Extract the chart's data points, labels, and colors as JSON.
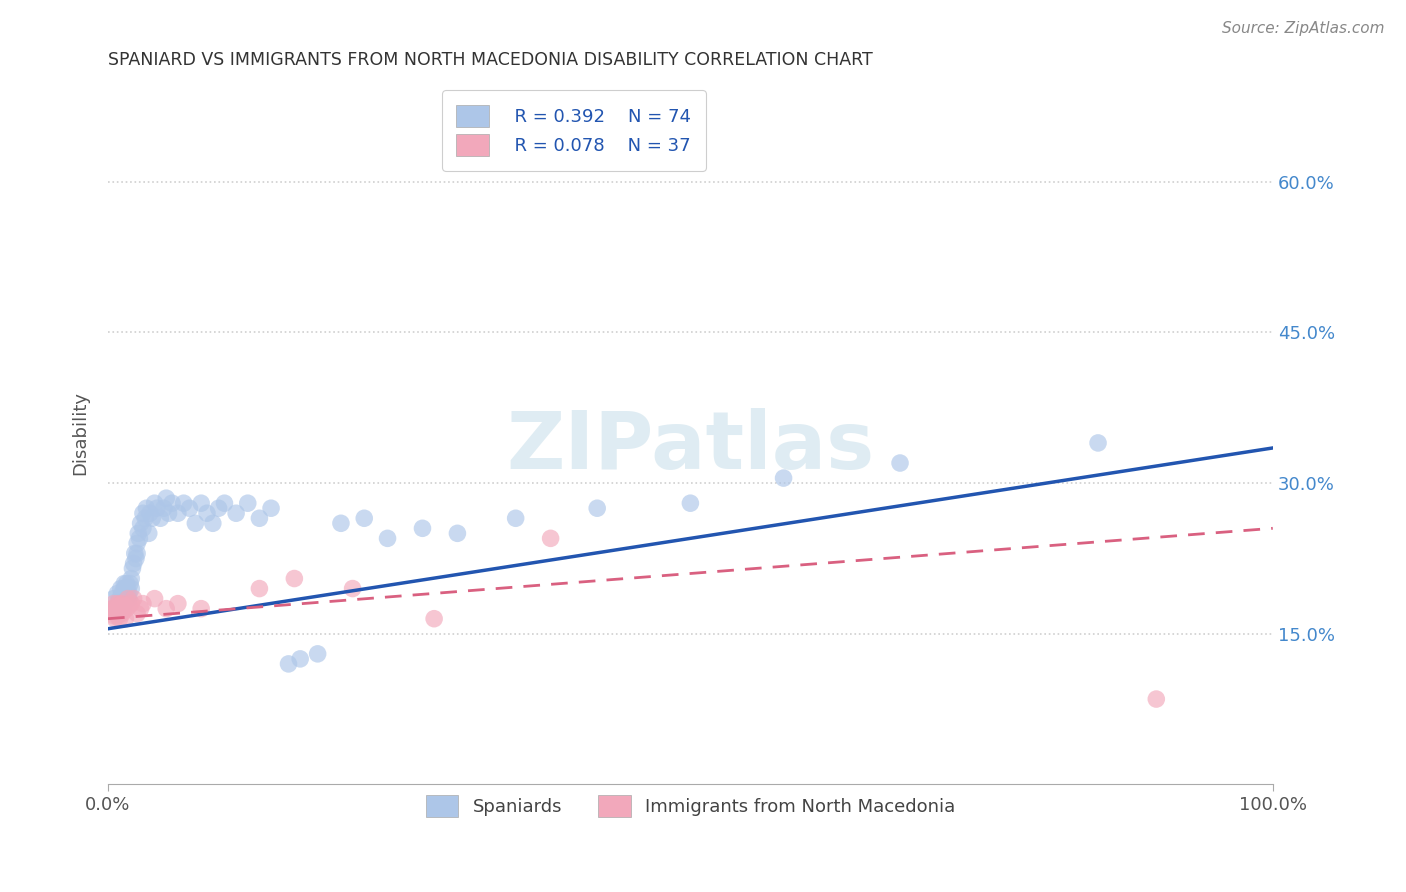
{
  "title": "SPANIARD VS IMMIGRANTS FROM NORTH MACEDONIA DISABILITY CORRELATION CHART",
  "source": "Source: ZipAtlas.com",
  "ylabel": "Disability",
  "watermark": "ZIPatlas",
  "legend_r1": "R = 0.392",
  "legend_n1": "N = 74",
  "legend_r2": "R = 0.078",
  "legend_n2": "N = 37",
  "legend_label1": "Spaniards",
  "legend_label2": "Immigrants from North Macedonia",
  "xlim": [
    0.0,
    1.0
  ],
  "ylim": [
    0.0,
    0.7
  ],
  "yticks": [
    0.15,
    0.3,
    0.45,
    0.6
  ],
  "ytick_labels": [
    "15.0%",
    "30.0%",
    "45.0%",
    "60.0%"
  ],
  "xticks": [
    0.0,
    1.0
  ],
  "xtick_labels": [
    "0.0%",
    "100.0%"
  ],
  "blue_scatter_color": "#adc6e8",
  "pink_scatter_color": "#f2a8bb",
  "blue_line_color": "#2255b0",
  "pink_line_color": "#d96080",
  "grid_color": "#d0d0d0",
  "axis_label_color": "#4488cc",
  "background_color": "#ffffff",
  "spaniards_x": [
    0.005,
    0.007,
    0.008,
    0.009,
    0.01,
    0.01,
    0.011,
    0.012,
    0.012,
    0.013,
    0.013,
    0.014,
    0.014,
    0.015,
    0.015,
    0.016,
    0.016,
    0.017,
    0.017,
    0.018,
    0.018,
    0.019,
    0.02,
    0.02,
    0.021,
    0.022,
    0.023,
    0.024,
    0.025,
    0.025,
    0.026,
    0.027,
    0.028,
    0.03,
    0.03,
    0.032,
    0.033,
    0.035,
    0.036,
    0.038,
    0.04,
    0.042,
    0.045,
    0.048,
    0.05,
    0.052,
    0.055,
    0.06,
    0.065,
    0.07,
    0.075,
    0.08,
    0.085,
    0.09,
    0.095,
    0.1,
    0.11,
    0.12,
    0.13,
    0.14,
    0.155,
    0.165,
    0.18,
    0.2,
    0.22,
    0.24,
    0.27,
    0.3,
    0.35,
    0.42,
    0.5,
    0.58,
    0.68,
    0.85
  ],
  "spaniards_y": [
    0.185,
    0.175,
    0.19,
    0.18,
    0.185,
    0.17,
    0.195,
    0.18,
    0.19,
    0.185,
    0.175,
    0.195,
    0.2,
    0.185,
    0.195,
    0.19,
    0.2,
    0.185,
    0.195,
    0.19,
    0.185,
    0.2,
    0.195,
    0.205,
    0.215,
    0.22,
    0.23,
    0.225,
    0.23,
    0.24,
    0.25,
    0.245,
    0.26,
    0.255,
    0.27,
    0.265,
    0.275,
    0.25,
    0.27,
    0.265,
    0.28,
    0.275,
    0.265,
    0.275,
    0.285,
    0.27,
    0.28,
    0.27,
    0.28,
    0.275,
    0.26,
    0.28,
    0.27,
    0.26,
    0.275,
    0.28,
    0.27,
    0.28,
    0.265,
    0.275,
    0.12,
    0.125,
    0.13,
    0.26,
    0.265,
    0.245,
    0.255,
    0.25,
    0.265,
    0.275,
    0.28,
    0.305,
    0.32,
    0.34
  ],
  "immigrants_x": [
    0.004,
    0.005,
    0.005,
    0.006,
    0.006,
    0.007,
    0.007,
    0.008,
    0.008,
    0.009,
    0.009,
    0.01,
    0.01,
    0.011,
    0.012,
    0.012,
    0.013,
    0.014,
    0.015,
    0.016,
    0.017,
    0.018,
    0.02,
    0.022,
    0.025,
    0.028,
    0.03,
    0.04,
    0.05,
    0.06,
    0.08,
    0.13,
    0.16,
    0.21,
    0.28,
    0.38,
    0.9
  ],
  "immigrants_y": [
    0.175,
    0.168,
    0.18,
    0.172,
    0.165,
    0.178,
    0.17,
    0.175,
    0.168,
    0.18,
    0.172,
    0.178,
    0.165,
    0.175,
    0.17,
    0.18,
    0.172,
    0.178,
    0.165,
    0.175,
    0.185,
    0.178,
    0.18,
    0.185,
    0.17,
    0.175,
    0.18,
    0.185,
    0.175,
    0.18,
    0.175,
    0.195,
    0.205,
    0.195,
    0.165,
    0.245,
    0.085
  ],
  "blue_line_x0": 0.0,
  "blue_line_y0": 0.155,
  "blue_line_x1": 1.0,
  "blue_line_y1": 0.335,
  "pink_line_x0": 0.0,
  "pink_line_y0": 0.165,
  "pink_line_x1": 1.0,
  "pink_line_y1": 0.255
}
